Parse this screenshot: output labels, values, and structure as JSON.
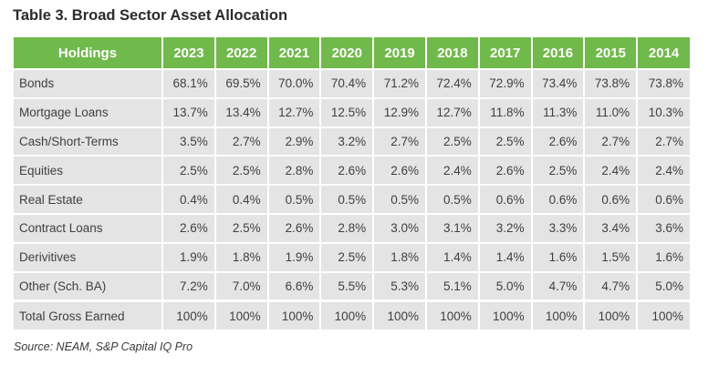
{
  "title": "Table 3. Broad Sector Asset Allocation",
  "table": {
    "header_label": "Holdings",
    "years": [
      "2023",
      "2022",
      "2021",
      "2020",
      "2019",
      "2018",
      "2017",
      "2016",
      "2015",
      "2014"
    ],
    "rows": [
      {
        "label": "Bonds",
        "values": [
          "68.1%",
          "69.5%",
          "70.0%",
          "70.4%",
          "71.2%",
          "72.4%",
          "72.9%",
          "73.4%",
          "73.8%",
          "73.8%"
        ]
      },
      {
        "label": "Mortgage Loans",
        "values": [
          "13.7%",
          "13.4%",
          "12.7%",
          "12.5%",
          "12.9%",
          "12.7%",
          "11.8%",
          "11.3%",
          "11.0%",
          "10.3%"
        ]
      },
      {
        "label": "Cash/Short-Terms",
        "values": [
          "3.5%",
          "2.7%",
          "2.9%",
          "3.2%",
          "2.7%",
          "2.5%",
          "2.5%",
          "2.6%",
          "2.7%",
          "2.7%"
        ]
      },
      {
        "label": "Equities",
        "values": [
          "2.5%",
          "2.5%",
          "2.8%",
          "2.6%",
          "2.6%",
          "2.4%",
          "2.6%",
          "2.5%",
          "2.4%",
          "2.4%"
        ]
      },
      {
        "label": "Real Estate",
        "values": [
          "0.4%",
          "0.4%",
          "0.5%",
          "0.5%",
          "0.5%",
          "0.5%",
          "0.6%",
          "0.6%",
          "0.6%",
          "0.6%"
        ]
      },
      {
        "label": "Contract Loans",
        "values": [
          "2.6%",
          "2.5%",
          "2.6%",
          "2.8%",
          "3.0%",
          "3.1%",
          "3.2%",
          "3.3%",
          "3.4%",
          "3.6%"
        ]
      },
      {
        "label": "Derivitives",
        "values": [
          "1.9%",
          "1.8%",
          "1.9%",
          "2.5%",
          "1.8%",
          "1.4%",
          "1.4%",
          "1.6%",
          "1.5%",
          "1.6%"
        ]
      },
      {
        "label": "Other (Sch. BA)",
        "values": [
          "7.2%",
          "7.0%",
          "6.6%",
          "5.5%",
          "5.3%",
          "5.1%",
          "5.0%",
          "4.7%",
          "4.7%",
          "5.0%"
        ]
      }
    ],
    "total": {
      "label": "Total Gross Earned",
      "values": [
        "100%",
        "100%",
        "100%",
        "100%",
        "100%",
        "100%",
        "100%",
        "100%",
        "100%",
        "100%"
      ]
    }
  },
  "source": "Source: NEAM, S&P Capital IQ Pro",
  "colors": {
    "header_bg": "#70b94b",
    "cell_bg": "#e4e4e4"
  }
}
